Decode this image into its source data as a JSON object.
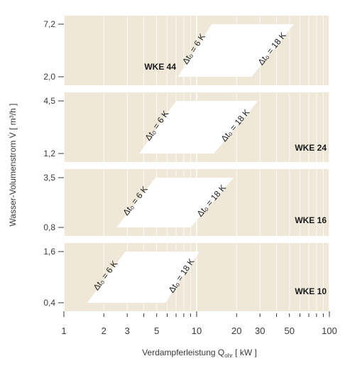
{
  "chart_data": {
    "type": "area",
    "xlabel": "Verdampferleistung Q",
    "xlabel_sub": "ohr",
    "xunit": "[ kW ]",
    "ylabel": "Wasser-Volumenstrom V̇ [ m³/h ]",
    "x_scale": "log",
    "xlim": [
      1,
      100
    ],
    "x_ticks": [
      1,
      2,
      3,
      5,
      10,
      20,
      30,
      50,
      100
    ],
    "x_tick_labels": [
      "1",
      "2",
      "3",
      "5",
      "10",
      "20",
      "30",
      "50",
      "100"
    ],
    "grid": true,
    "panels": [
      {
        "name": "WKE 44",
        "y_range": [
          2.0,
          7.2
        ],
        "y_tick_labels": [
          "2,0",
          "7,2"
        ],
        "region": {
          "bottom_x": [
            7.2,
            26
          ],
          "top_x": [
            13,
            54
          ]
        },
        "labels": {
          "left": "Δt₀ = 6 K",
          "right": "Δt₀ = 18 K"
        }
      },
      {
        "name": "WKE 24",
        "y_range": [
          1.2,
          4.5
        ],
        "y_tick_labels": [
          "1,2",
          "4,5"
        ],
        "region": {
          "bottom_x": [
            3.7,
            13.5
          ],
          "top_x": [
            7.0,
            29
          ]
        },
        "labels": {
          "left": "Δt₀ = 6 K",
          "right": "Δt₀ = 18 K"
        }
      },
      {
        "name": "WKE 16",
        "y_range": [
          0.8,
          3.5
        ],
        "y_tick_labels": [
          "0,8",
          "3,5"
        ],
        "region": {
          "bottom_x": [
            2.5,
            9.0
          ],
          "top_x": [
            4.9,
            19
          ]
        },
        "labels": {
          "left": "Δt₀ = 6 K",
          "right": "Δt₀ = 18 K"
        }
      },
      {
        "name": "WKE 10",
        "y_range": [
          0.4,
          1.6
        ],
        "y_tick_labels": [
          "0,4",
          "1,6"
        ],
        "region": {
          "bottom_x": [
            1.5,
            5.8
          ],
          "top_x": [
            2.9,
            10.5
          ]
        },
        "labels": {
          "left": "Δt₀ = 6 K",
          "right": "Δt₀ = 18 K"
        }
      }
    ]
  },
  "colors": {
    "panel_bg": "#efe8d9",
    "grid": "#ffffff",
    "region": "#ffffff",
    "text": "#3a3a3a",
    "label": "#1a1a1a"
  }
}
